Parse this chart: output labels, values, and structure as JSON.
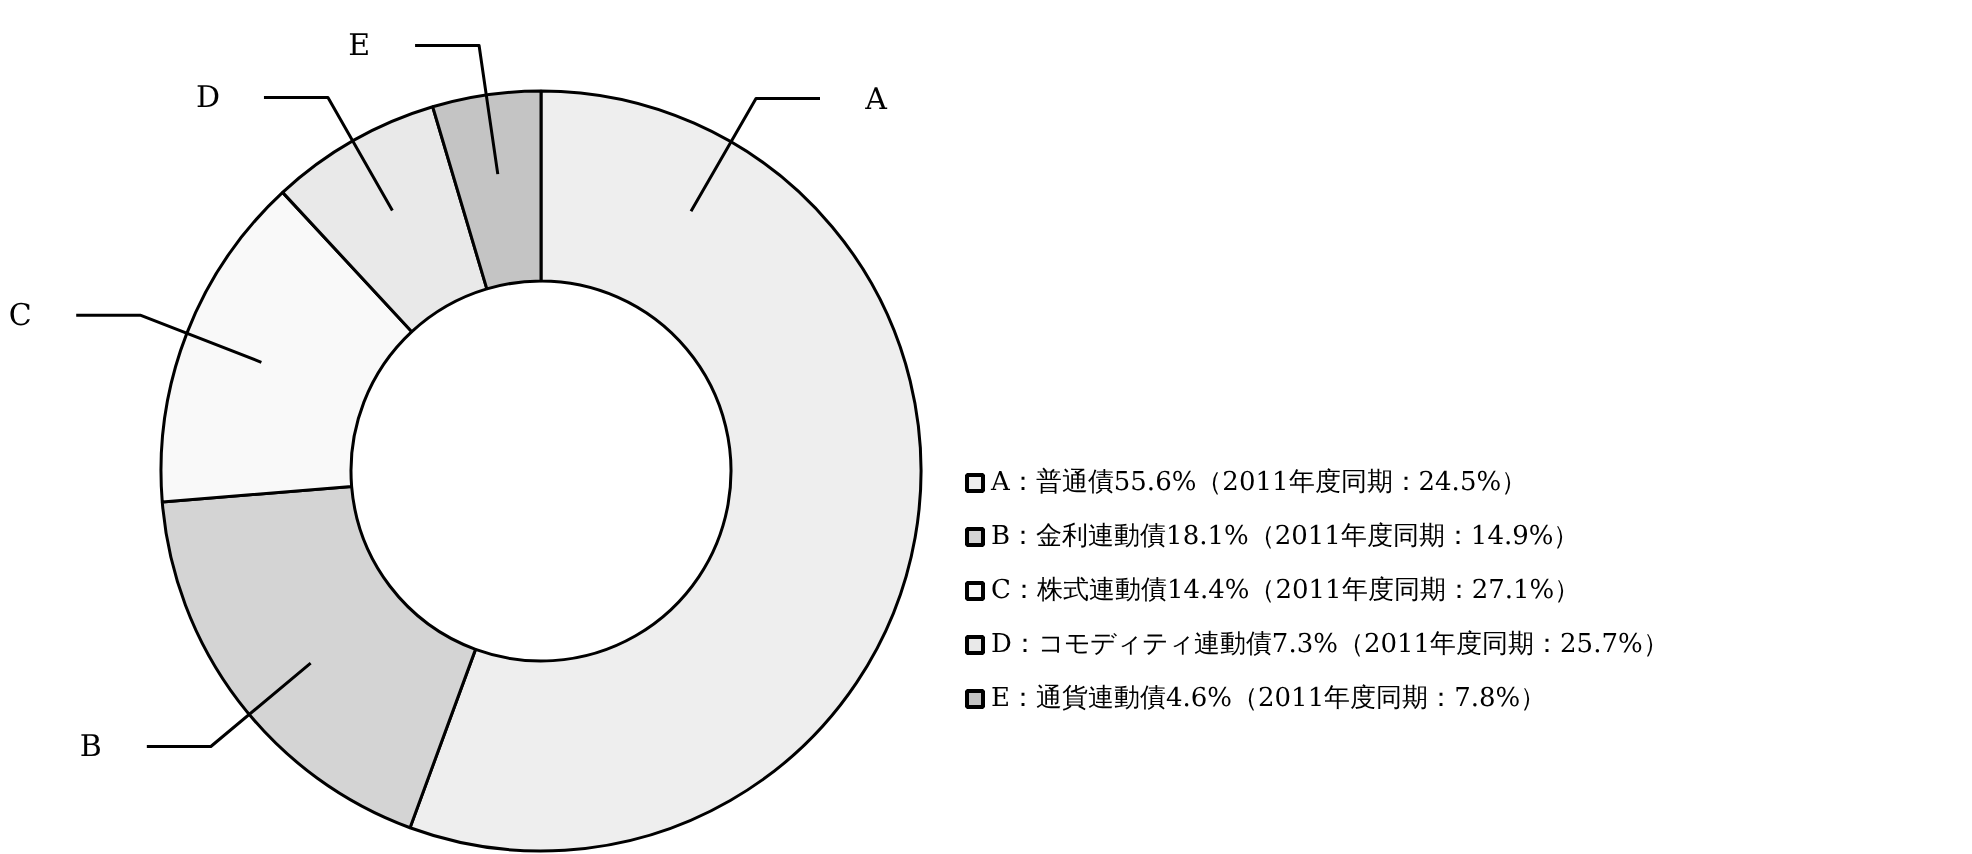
{
  "chart_data": {
    "type": "donut",
    "categories": [
      "A：普通債55.6%（2011年度同期：24.5%）",
      "B：金利連動債18.1%（2011年度同期：14.9%）",
      "C：株式連動債14.4%（2011年度同期：27.1%）",
      "D：コモディティ連動債7.3%（2011年度同期：25.7%）",
      "E：通貨連動債4.6%（2011年度同期：7.8%）"
    ],
    "values": [
      55.6,
      18.1,
      14.4,
      7.3,
      4.6
    ],
    "colors": [
      "#eeeeee",
      "#d4d4d4",
      "#f9f9f9",
      "#e9e9e9",
      "#c4c4c4"
    ],
    "annotations": [
      "A",
      "B",
      "C",
      "D",
      "E"
    ],
    "legend": "right"
  }
}
